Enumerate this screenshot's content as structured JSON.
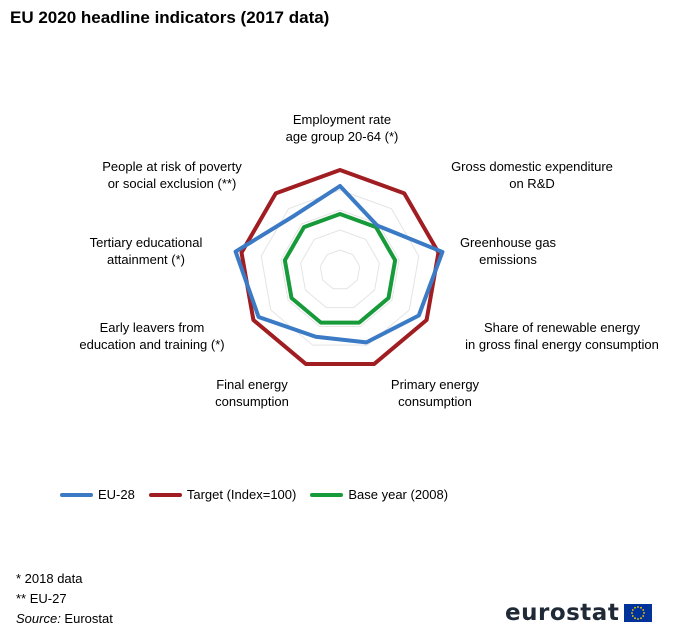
{
  "title": "EU 2020 headline indicators (2017 data)",
  "chart_data": {
    "type": "radar",
    "title": "EU 2020 headline indicators (2017 data)",
    "axes": [
      "Employment rate\nage group 20-64 (*)",
      "Gross domestic expenditure\non R&D",
      "Greenhouse gas\nemissions",
      "Share of renewable energy\nin gross final energy consumption",
      "Primary energy\nconsumption",
      "Final energy\nconsumption",
      "Early leavers from\neducation and training (*)",
      "Tertiary educational\nattainment (*)",
      "People at risk of poverty\nor social exclusion (**)"
    ],
    "rlim": [
      0,
      110
    ],
    "grid": true,
    "legend_position": "bottom",
    "series": [
      {
        "name": "EU-28",
        "color": "#3b7ac4",
        "values": [
          84,
          58,
          104,
          91,
          77,
          71,
          94,
          106,
          71
        ]
      },
      {
        "name": "Target (Index=100)",
        "color": "#a01d22",
        "values": [
          100,
          100,
          100,
          100,
          100,
          100,
          100,
          100,
          100
        ]
      },
      {
        "name": "Base year (2008)",
        "color": "#179a3a",
        "values": [
          56,
          56,
          56,
          56,
          56,
          56,
          56,
          56,
          56
        ]
      }
    ]
  },
  "notes": {
    "star": "* 2018 data",
    "double_star": "** EU-27",
    "source_label": "Source:",
    "source_value": " Eurostat"
  },
  "logo": {
    "text": "eurostat",
    "flag_icon": "eu-flag-icon",
    "flag_color": "#003399",
    "star_color": "#ffcc00"
  }
}
